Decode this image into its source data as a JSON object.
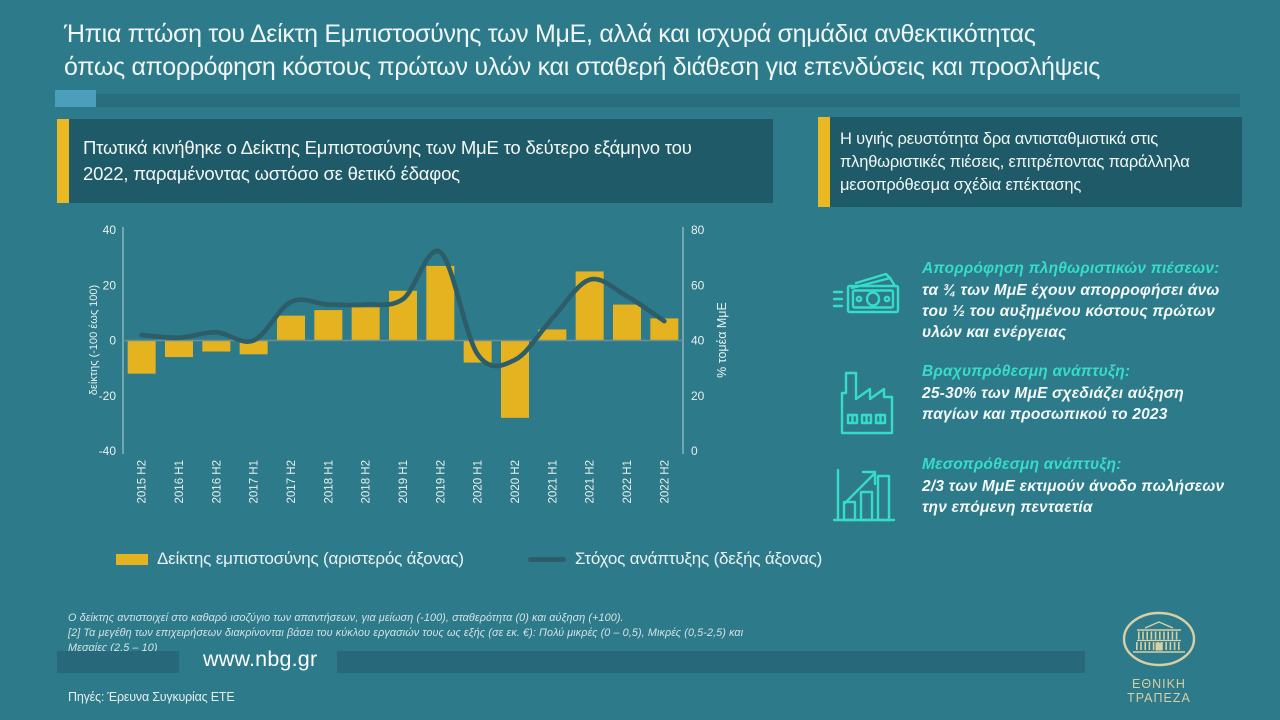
{
  "slide": {
    "title_line1": "Ήπια πτώση του Δείκτη Εμπιστοσύνης των ΜμΕ, αλλά και ισχυρά σημάδια ανθεκτικότητας",
    "title_line2": "όπως απορρόφηση κόστους πρώτων υλών και σταθερή διάθεση για επενδύσεις και προσλήψεις"
  },
  "callouts": {
    "left": "Πτωτικά κινήθηκε ο Δείκτης Εμπιστοσύνης των ΜμΕ το δεύτερο εξάμηνο του 2022, παραμένοντας ωστόσο σε θετικό έδαφος",
    "right": "Η  υγιής ρευστότητα δρα αντισταθμιστικά στις πληθωριστικές πιέσεις, επιτρέποντας παράλληλα μεσοπρόθεσμα σχέδια επέκτασης"
  },
  "chart_data": {
    "type": "bar",
    "categories": [
      "2015 H2",
      "2016 H1",
      "2016 H2",
      "2017 H1",
      "2017 H2",
      "2018 H1",
      "2018 H2",
      "2019 H1",
      "2019 H2",
      "2020 H1",
      "2020 H2",
      "2021 H1",
      "2021 H2",
      "2022 H1",
      "2022 H2"
    ],
    "series": [
      {
        "name": "Δείκτης εμπιστοσύνης (αριστερός άξονας)",
        "type": "bar",
        "axis": "left",
        "values": [
          -12,
          -6,
          -4,
          -5,
          9,
          11,
          12,
          18,
          27,
          -8,
          -28,
          4,
          25,
          13,
          8
        ]
      },
      {
        "name": "Στόχος ανάπτυξης (δεξής άξονας)",
        "type": "line",
        "axis": "right",
        "values": [
          42,
          41,
          43,
          40,
          54,
          53,
          53,
          55,
          72,
          35,
          33,
          48,
          62,
          56,
          47
        ]
      }
    ],
    "left_axis": {
      "label": "δείκτης (-100 έως 100)",
      "ticks": [
        40,
        20,
        0,
        -20,
        -40
      ],
      "min": -40,
      "max": 40
    },
    "right_axis": {
      "label": "% τομέα ΜμΕ",
      "ticks": [
        80,
        60,
        40,
        20,
        0
      ],
      "min": 0,
      "max": 80
    },
    "grid": "zero-line-only",
    "legend_position": "bottom",
    "colors": {
      "bar": "#E4B31F",
      "line": "#2C5D68"
    }
  },
  "legend": {
    "bar_label": "Δείκτης εμπιστοσύνης (αριστερός άξονας)",
    "line_label": "Στόχος ανάπτυξης (δεξής άξονας)"
  },
  "footnotes": [
    "Ο δείκτης  αντιστοιχεί στο  καθαρό ισοζύγιο  των απαντήσεων,  για μείωση  (-100), σταθερότητα   (0)  και αύξηση  (+100).",
    "[2] Τα μεγέθη  των επιχειρήσεων   διακρίνονται βάσει του κύκλου  εργασιών  τους  ως εξής  (σε εκ.  €): Πολύ  μικρές  (0 –  0,5),  Μικρές   (0,5-2,5)  και Μεσαίες   (2,5  –  10)"
  ],
  "highlights": [
    {
      "icon": "banknotes-icon",
      "heading": "Απορρόφηση  πληθωριστικών πιέσεων:",
      "body": "τα ¾ των ΜμΕ έχουν απορροφήσει άνω του ½ του αυξημένου κόστους πρώτων υλών και ενέργειας"
    },
    {
      "icon": "factory-icon",
      "heading": "Βραχυπρόθεσμη ανάπτυξη:",
      "body": "25-30% των ΜμΕ σχεδιάζει αύξηση παγίων και προσωπικού  το 2023"
    },
    {
      "icon": "growth-chart-icon",
      "heading": "Μεσοπρόθεσμη ανάπτυξη:",
      "body": "2/3 των ΜμΕ εκτιμούν άνοδο πωλήσεων την επόμενη πενταετία"
    }
  ],
  "footer": {
    "url": "www.nbg.gr",
    "sources": "Πηγές: Έρευνα Συγκυρίας ΕΤΕ",
    "logo_text": "ΕΘΝΙΚΗ ΤΡΑΠΕΖΑ",
    "logo_icon": "nbg-building-logo"
  },
  "accent_colors": {
    "background": "#2D7A8A",
    "box": "#1F5A68",
    "yellow": "#E9B822",
    "cyan": "#36DCC8",
    "beige": "#D8CFA4"
  }
}
